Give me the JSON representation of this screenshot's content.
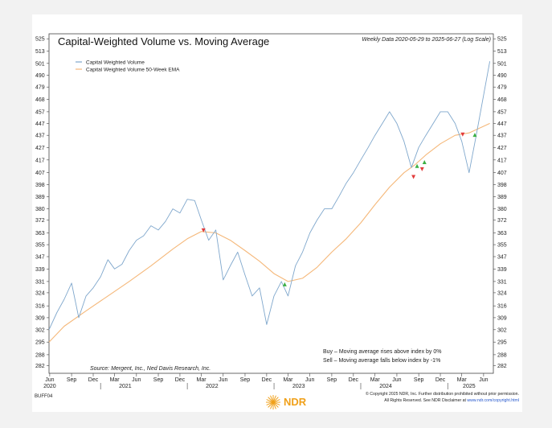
{
  "chart_data": {
    "type": "line",
    "title": "Capital-Weighted Volume vs. Moving Average",
    "subtitle": "Weekly Data 2020-05-29 to 2025-06-27 (Log Scale)",
    "source": "Source:   Mergent, Inc., Ned Davis Research, Inc.",
    "chart_code": "BUFF04",
    "y_scale": "log",
    "ylim": [
      278,
      530
    ],
    "y_ticks": [
      282,
      288,
      295,
      302,
      309,
      316,
      324,
      331,
      339,
      347,
      355,
      363,
      372,
      380,
      389,
      398,
      407,
      417,
      427,
      437,
      447,
      457,
      468,
      479,
      490,
      501,
      513,
      525
    ],
    "x_ticks": [
      "Jun",
      "Sep",
      "Dec",
      "Mar",
      "Jun",
      "Sep",
      "Dec",
      "Mar",
      "Jun",
      "Sep",
      "Dec",
      "Mar",
      "Jun",
      "Sep",
      "Dec",
      "Mar",
      "Jun",
      "Sep",
      "Dec",
      "Mar",
      "Jun"
    ],
    "x_years": [
      "2020",
      "2021",
      "2022",
      "2023",
      "2024",
      "2025"
    ],
    "legend_position": "top-left",
    "series": [
      {
        "name": "Capital Weighted Volume",
        "color": "#7fa7cc",
        "x": [
          "2020-05-29",
          "2020-07-01",
          "2020-08-01",
          "2020-09-01",
          "2020-10-01",
          "2020-11-01",
          "2020-12-01",
          "2021-01-01",
          "2021-02-01",
          "2021-03-01",
          "2021-04-01",
          "2021-05-01",
          "2021-06-01",
          "2021-07-01",
          "2021-08-01",
          "2021-09-01",
          "2021-10-01",
          "2021-11-01",
          "2021-12-01",
          "2022-01-01",
          "2022-02-01",
          "2022-03-01",
          "2022-04-01",
          "2022-05-01",
          "2022-06-01",
          "2022-07-01",
          "2022-08-01",
          "2022-09-01",
          "2022-10-01",
          "2022-11-01",
          "2022-12-01",
          "2023-01-01",
          "2023-02-01",
          "2023-03-01",
          "2023-04-01",
          "2023-05-01",
          "2023-06-01",
          "2023-07-01",
          "2023-08-01",
          "2023-09-01",
          "2023-10-01",
          "2023-11-01",
          "2023-12-01",
          "2024-01-01",
          "2024-02-01",
          "2024-03-01",
          "2024-04-01",
          "2024-05-01",
          "2024-06-01",
          "2024-07-01",
          "2024-08-01",
          "2024-09-01",
          "2024-10-01",
          "2024-11-01",
          "2024-12-01",
          "2025-01-01",
          "2025-02-01",
          "2025-03-01",
          "2025-04-01",
          "2025-05-01",
          "2025-06-27"
        ],
        "values": [
          302,
          312,
          320,
          330,
          309,
          322,
          327,
          334,
          345,
          339,
          342,
          351,
          358,
          361,
          368,
          365,
          371,
          380,
          377,
          387,
          386,
          372,
          358,
          365,
          332,
          341,
          350,
          335,
          322,
          327,
          305,
          322,
          331,
          322,
          341,
          350,
          363,
          372,
          380,
          380,
          389,
          399,
          407,
          417,
          427,
          437,
          447,
          457,
          447,
          432,
          411,
          427,
          437,
          447,
          457,
          457,
          447,
          432,
          407,
          437,
          503
        ]
      },
      {
        "name": "Capital Weighted Volume 50-Week EMA",
        "color": "#f5b87a",
        "x": [
          "2020-05-29",
          "2020-08-01",
          "2020-11-01",
          "2021-02-01",
          "2021-05-01",
          "2021-08-01",
          "2021-11-01",
          "2022-01-01",
          "2022-03-01",
          "2022-05-01",
          "2022-07-01",
          "2022-09-01",
          "2022-11-01",
          "2023-01-01",
          "2023-03-01",
          "2023-05-01",
          "2023-07-01",
          "2023-09-01",
          "2023-11-01",
          "2024-01-01",
          "2024-03-01",
          "2024-05-01",
          "2024-07-01",
          "2024-08-15",
          "2024-10-01",
          "2024-12-01",
          "2025-02-01",
          "2025-04-01",
          "2025-06-27"
        ],
        "values": [
          295,
          304,
          313,
          322,
          331,
          341,
          352,
          359,
          364,
          363,
          358,
          351,
          344,
          336,
          331,
          333,
          340,
          350,
          359,
          370,
          383,
          396,
          407,
          413,
          421,
          430,
          437,
          439,
          447
        ]
      }
    ],
    "signals": [
      {
        "type": "sell",
        "x": "2022-03-10",
        "y": 365
      },
      {
        "type": "buy",
        "x": "2023-02-15",
        "y": 329
      },
      {
        "type": "sell",
        "x": "2024-08-10",
        "y": 404
      },
      {
        "type": "buy",
        "x": "2024-08-25",
        "y": 412
      },
      {
        "type": "sell",
        "x": "2024-09-15",
        "y": 410
      },
      {
        "type": "buy",
        "x": "2024-09-25",
        "y": 415
      },
      {
        "type": "sell",
        "x": "2025-03-05",
        "y": 438
      },
      {
        "type": "buy",
        "x": "2025-04-25",
        "y": 437
      }
    ],
    "annotations": [
      "Buy – Moving average rises above index by 0%",
      "Sell – Moving average falls below index by -1%"
    ]
  },
  "footer": {
    "copyright": "© Copyright 2025 NDR, Inc. Further distribution prohibited without prior permission.",
    "rights_prefix": "All Rights Reserved. See NDR Disclaimer at ",
    "rights_link": "www.ndr.com/copyright.html",
    "logo_text": "NDR"
  },
  "colors": {
    "buy": "#3cb043",
    "sell": "#e23b3b",
    "logo": "#f0a019",
    "link": "#2255cc"
  }
}
